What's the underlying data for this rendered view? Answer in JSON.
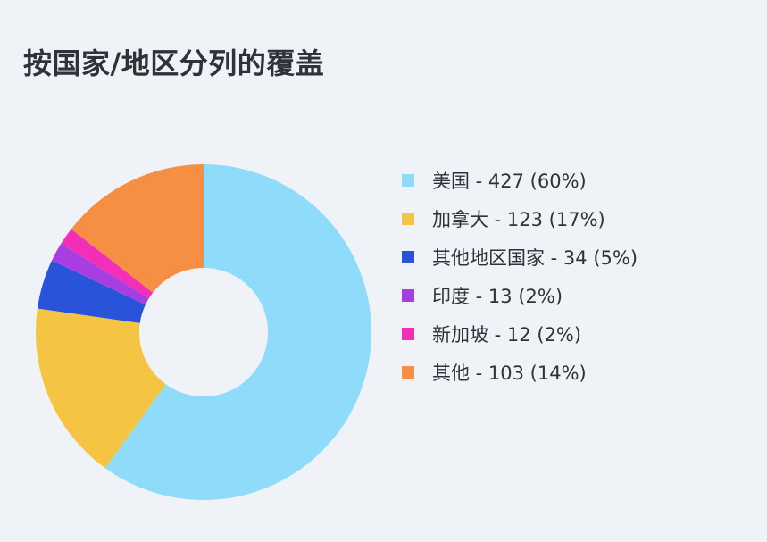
{
  "title": "按国家/地区分列的覆盖",
  "chart_data": {
    "type": "pie",
    "title": "按国家/地区分列的覆盖",
    "categories": [
      "美国",
      "加拿大",
      "其他地区国家",
      "印度",
      "新加坡",
      "其他"
    ],
    "values": [
      427,
      123,
      34,
      13,
      12,
      103
    ],
    "labels": [
      "美国 - 427 (60%)",
      "加拿大 - 123 (17%)",
      "其他地区国家 - 34 (5%)",
      "印度 - 13 (2%)",
      "新加坡 - 12 (2%)",
      "其他 - 103 (14%)"
    ],
    "colors": [
      "#8fdcfa",
      "#f6c443",
      "#2954d9",
      "#a63ee1",
      "#f32fb8",
      "#f68f43"
    ],
    "legend_position": "right",
    "donut": true
  }
}
